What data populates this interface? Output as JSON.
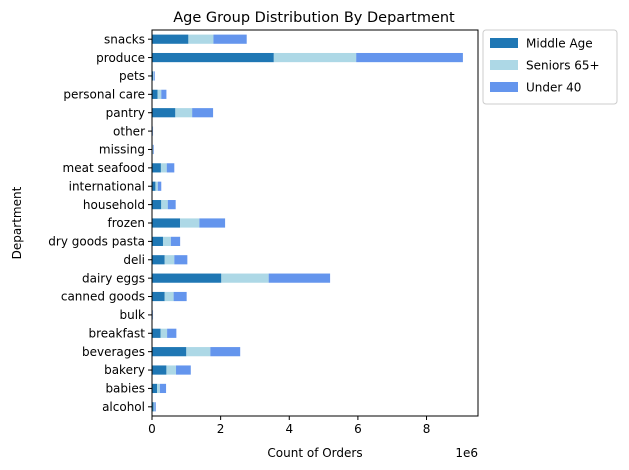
{
  "chart_data": {
    "type": "bar",
    "orientation": "horizontal",
    "stacked": true,
    "title": "Age Group Distribution By Department",
    "xlabel": "Count of Orders",
    "ylabel": "Department",
    "x_offset_label": "1e6",
    "xlim": [
      0,
      9.5
    ],
    "x_ticks": [
      0,
      2,
      4,
      6,
      8
    ],
    "x_scale_note": "values in millions (×1e6)",
    "grid": false,
    "legend_position": "outside-top-right",
    "categories": [
      "alcohol",
      "babies",
      "bakery",
      "beverages",
      "breakfast",
      "bulk",
      "canned goods",
      "dairy eggs",
      "deli",
      "dry goods pasta",
      "frozen",
      "household",
      "international",
      "meat seafood",
      "missing",
      "other",
      "pantry",
      "personal care",
      "pets",
      "produce",
      "snacks"
    ],
    "series": [
      {
        "name": "Middle Age",
        "color": "#1f77b4",
        "values": [
          0.05,
          0.15,
          0.42,
          1.0,
          0.25,
          0.01,
          0.37,
          2.02,
          0.37,
          0.32,
          0.82,
          0.27,
          0.1,
          0.26,
          0.02,
          0.01,
          0.68,
          0.16,
          0.03,
          3.55,
          1.06
        ]
      },
      {
        "name": "Seniors 65+",
        "color": "#add8e6",
        "values": [
          0.02,
          0.08,
          0.28,
          0.7,
          0.19,
          0.01,
          0.26,
          1.38,
          0.28,
          0.23,
          0.56,
          0.19,
          0.07,
          0.17,
          0.01,
          0.01,
          0.49,
          0.11,
          0.02,
          2.4,
          0.73
        ]
      },
      {
        "name": "Under 40",
        "color": "#6495ed",
        "values": [
          0.04,
          0.18,
          0.43,
          0.87,
          0.27,
          0.01,
          0.38,
          1.79,
          0.38,
          0.27,
          0.75,
          0.23,
          0.1,
          0.22,
          0.02,
          0.01,
          0.61,
          0.15,
          0.03,
          3.11,
          0.97
        ]
      }
    ]
  }
}
